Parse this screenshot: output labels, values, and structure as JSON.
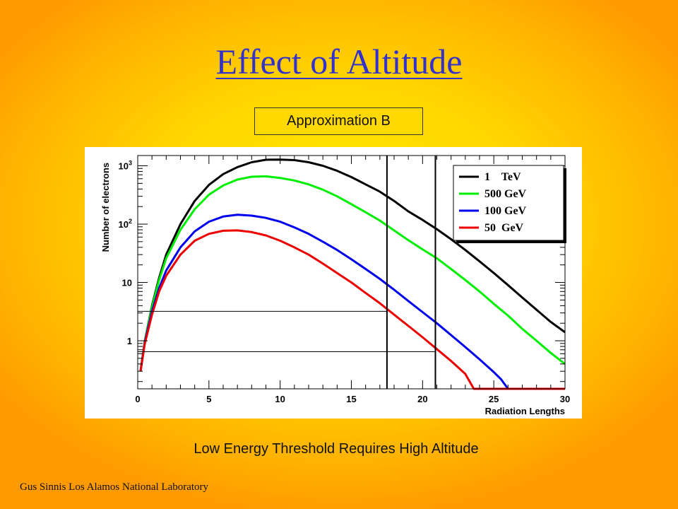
{
  "slide": {
    "title": "Effect of Altitude",
    "subtitle_box": "Approximation B",
    "caption": "Low Energy Threshold Requires High Altitude",
    "footer": "Gus Sinnis Los Alamos National Laboratory"
  },
  "chart_data": {
    "type": "line",
    "title": "",
    "xlabel": "Radiation Lengths",
    "ylabel": "Number of electrons",
    "xlim": [
      0,
      30
    ],
    "ylim": [
      0.15,
      1500
    ],
    "y_scale": "log",
    "x_ticks": [
      0,
      5,
      10,
      15,
      20,
      25,
      30
    ],
    "y_tick_labels": [
      {
        "value": 1,
        "label": "1"
      },
      {
        "value": 10,
        "label": "10"
      },
      {
        "value": 100,
        "label": "10",
        "exp": "2"
      },
      {
        "value": 1000,
        "label": "10",
        "exp": "3"
      }
    ],
    "legend_placement": "top-right",
    "grid": false,
    "vertical_lines": [
      17.5,
      20.9
    ],
    "horizontal_lines": [
      3.2,
      0.65
    ],
    "series": [
      {
        "name": "1    TeV",
        "color": "#000000",
        "x": [
          0.2,
          0.5,
          1,
          1.5,
          2,
          3,
          4,
          5,
          6,
          7,
          8,
          9,
          10,
          11,
          12,
          13,
          14,
          15,
          16,
          17,
          18,
          19,
          20,
          21,
          22,
          23,
          24,
          25,
          26,
          27,
          28,
          29,
          30
        ],
        "y": [
          0.3,
          1.0,
          4.0,
          12,
          30,
          100,
          250,
          470,
          720,
          950,
          1150,
          1270,
          1280,
          1250,
          1150,
          1000,
          820,
          640,
          480,
          360,
          250,
          165,
          118,
          82,
          55,
          36,
          23,
          14.5,
          9,
          5.5,
          3.4,
          2.1,
          1.4
        ]
      },
      {
        "name": "500 GeV",
        "color": "#00ee00",
        "x": [
          0.2,
          0.5,
          1,
          1.5,
          2,
          3,
          4,
          5,
          6,
          7,
          8,
          9,
          10,
          11,
          12,
          13,
          14,
          15,
          16,
          17,
          18,
          19,
          20,
          21,
          22,
          23,
          24,
          25,
          26,
          27,
          28,
          29,
          30
        ],
        "y": [
          0.3,
          1.0,
          3.8,
          11,
          26,
          80,
          180,
          320,
          460,
          580,
          650,
          660,
          620,
          560,
          480,
          390,
          300,
          220,
          160,
          115,
          78,
          53,
          37,
          26,
          17,
          11,
          7,
          4.3,
          2.7,
          1.6,
          1.0,
          0.62,
          0.4
        ]
      },
      {
        "name": "100 GeV",
        "color": "#0000ee",
        "x": [
          0.2,
          0.5,
          1,
          1.5,
          2,
          3,
          4,
          5,
          6,
          7,
          8,
          9,
          10,
          11,
          12,
          13,
          14,
          15,
          16,
          17,
          18,
          19,
          20,
          21,
          22,
          23,
          24,
          25,
          25.5,
          26,
          30
        ],
        "y": [
          0.3,
          0.95,
          3.2,
          8,
          16,
          40,
          75,
          110,
          135,
          145,
          140,
          128,
          110,
          88,
          68,
          50,
          36,
          25,
          17,
          11.5,
          7.5,
          4.8,
          3.1,
          2.0,
          1.25,
          0.78,
          0.48,
          0.29,
          0.22,
          0.15,
          0.15
        ]
      },
      {
        "name": "50  GeV",
        "color": "#ee0000",
        "x": [
          0.2,
          0.5,
          1,
          1.5,
          2,
          3,
          4,
          5,
          6,
          7,
          8,
          9,
          10,
          11,
          12,
          13,
          14,
          15,
          16,
          17,
          18,
          19,
          20,
          21,
          22,
          23,
          23.6,
          30
        ],
        "y": [
          0.3,
          0.9,
          2.8,
          7,
          13,
          30,
          52,
          68,
          77,
          78,
          73,
          64,
          52,
          40,
          30,
          21,
          14.5,
          10,
          6.6,
          4.4,
          2.8,
          1.8,
          1.15,
          0.72,
          0.45,
          0.27,
          0.15,
          0.15
        ]
      }
    ]
  }
}
